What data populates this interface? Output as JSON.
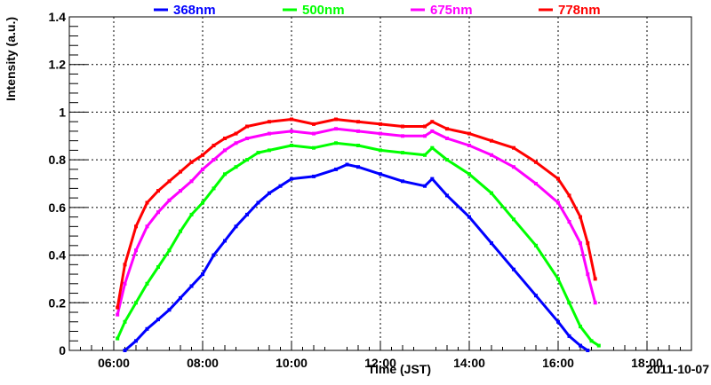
{
  "chart_data": {
    "type": "scatter",
    "xlabel": "Time (JST)",
    "ylabel": "Intensity (a.u.)",
    "date_label": "2011-10-07",
    "xlim": [
      "05:00",
      "19:00"
    ],
    "ylim": [
      0,
      1.4
    ],
    "grid": true,
    "legend_position": "top",
    "x_ticks": [
      "06:00",
      "08:00",
      "10:00",
      "12:00",
      "14:00",
      "16:00",
      "18:00"
    ],
    "y_ticks": [
      "0",
      "0.2",
      "0.4",
      "0.6",
      "0.8",
      "1",
      "1.2",
      "1.4"
    ],
    "series": [
      {
        "name": "368nm",
        "color": "#0000ff",
        "x": [
          "06:15",
          "06:30",
          "06:45",
          "07:00",
          "07:15",
          "07:30",
          "07:45",
          "08:00",
          "08:15",
          "08:30",
          "08:45",
          "09:00",
          "09:15",
          "09:30",
          "09:45",
          "10:00",
          "10:30",
          "11:00",
          "11:15",
          "11:30",
          "12:00",
          "12:30",
          "13:00",
          "13:10",
          "13:30",
          "14:00",
          "14:30",
          "15:00",
          "15:30",
          "16:00",
          "16:15",
          "16:30",
          "16:40"
        ],
        "values": [
          0.0,
          0.04,
          0.09,
          0.13,
          0.17,
          0.22,
          0.27,
          0.32,
          0.4,
          0.46,
          0.52,
          0.57,
          0.62,
          0.66,
          0.69,
          0.72,
          0.73,
          0.76,
          0.78,
          0.77,
          0.74,
          0.71,
          0.69,
          0.72,
          0.65,
          0.56,
          0.45,
          0.34,
          0.23,
          0.12,
          0.06,
          0.02,
          0.0
        ]
      },
      {
        "name": "500nm",
        "color": "#00ff00",
        "x": [
          "06:05",
          "06:15",
          "06:30",
          "06:45",
          "07:00",
          "07:15",
          "07:30",
          "07:45",
          "08:00",
          "08:15",
          "08:30",
          "08:45",
          "09:00",
          "09:15",
          "09:30",
          "10:00",
          "10:30",
          "11:00",
          "11:30",
          "12:00",
          "12:30",
          "13:00",
          "13:10",
          "13:30",
          "14:00",
          "14:30",
          "15:00",
          "15:30",
          "16:00",
          "16:15",
          "16:30",
          "16:45",
          "16:55"
        ],
        "values": [
          0.05,
          0.12,
          0.2,
          0.28,
          0.35,
          0.42,
          0.5,
          0.57,
          0.62,
          0.68,
          0.74,
          0.77,
          0.8,
          0.83,
          0.84,
          0.86,
          0.85,
          0.87,
          0.86,
          0.84,
          0.83,
          0.82,
          0.85,
          0.8,
          0.74,
          0.66,
          0.55,
          0.44,
          0.3,
          0.2,
          0.1,
          0.04,
          0.02
        ]
      },
      {
        "name": "675nm",
        "color": "#ff00ff",
        "x": [
          "06:05",
          "06:15",
          "06:30",
          "06:45",
          "07:00",
          "07:15",
          "07:30",
          "07:45",
          "08:00",
          "08:15",
          "08:30",
          "08:45",
          "09:00",
          "09:30",
          "10:00",
          "10:30",
          "11:00",
          "11:30",
          "12:00",
          "12:30",
          "13:00",
          "13:10",
          "13:30",
          "14:00",
          "14:30",
          "15:00",
          "15:30",
          "16:00",
          "16:15",
          "16:30",
          "16:40",
          "16:50"
        ],
        "values": [
          0.15,
          0.28,
          0.42,
          0.52,
          0.58,
          0.63,
          0.67,
          0.71,
          0.76,
          0.8,
          0.84,
          0.87,
          0.89,
          0.91,
          0.92,
          0.91,
          0.93,
          0.92,
          0.91,
          0.9,
          0.9,
          0.92,
          0.89,
          0.86,
          0.82,
          0.77,
          0.7,
          0.62,
          0.54,
          0.45,
          0.32,
          0.2
        ]
      },
      {
        "name": "778nm",
        "color": "#ff0000",
        "x": [
          "06:05",
          "06:15",
          "06:30",
          "06:45",
          "07:00",
          "07:15",
          "07:30",
          "07:45",
          "08:00",
          "08:15",
          "08:30",
          "08:45",
          "09:00",
          "09:30",
          "10:00",
          "10:30",
          "11:00",
          "11:30",
          "12:00",
          "12:30",
          "13:00",
          "13:10",
          "13:30",
          "14:00",
          "14:30",
          "15:00",
          "15:30",
          "16:00",
          "16:15",
          "16:30",
          "16:40",
          "16:50"
        ],
        "values": [
          0.18,
          0.36,
          0.52,
          0.62,
          0.67,
          0.71,
          0.75,
          0.79,
          0.82,
          0.86,
          0.89,
          0.91,
          0.94,
          0.96,
          0.97,
          0.95,
          0.97,
          0.96,
          0.95,
          0.94,
          0.94,
          0.96,
          0.93,
          0.91,
          0.88,
          0.85,
          0.79,
          0.72,
          0.65,
          0.56,
          0.45,
          0.3
        ]
      }
    ]
  }
}
